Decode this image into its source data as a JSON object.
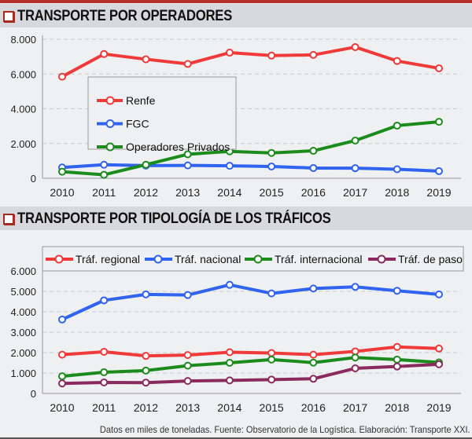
{
  "chart_data": [
    {
      "type": "line",
      "title": "TRANSPORTE POR OPERADORES",
      "x": [
        "2010",
        "2011",
        "2012",
        "2013",
        "2014",
        "2015",
        "2016",
        "2017",
        "2018",
        "2019"
      ],
      "yticks": [
        "0",
        "2.000",
        "4.000",
        "6.000",
        "8.000"
      ],
      "ylim": [
        0,
        8000
      ],
      "grid": true,
      "legend": "upper-left inside",
      "series": [
        {
          "name": "Renfe",
          "color": "#f03a3a",
          "values": [
            5850,
            7150,
            6850,
            6580,
            7230,
            7060,
            7100,
            7550,
            6750,
            6330
          ]
        },
        {
          "name": "FGC",
          "color": "#2f63f0",
          "values": [
            620,
            780,
            730,
            740,
            720,
            680,
            590,
            580,
            520,
            410
          ]
        },
        {
          "name": "Operadores Privados",
          "color": "#1b8c1b",
          "values": [
            380,
            200,
            780,
            1380,
            1550,
            1460,
            1580,
            2170,
            3030,
            3250
          ]
        }
      ]
    },
    {
      "type": "line",
      "title": "TRANSPORTE POR TIPOLOGÍA DE LOS TRÁFICOS",
      "x": [
        "2010",
        "2011",
        "2012",
        "2013",
        "2014",
        "2015",
        "2016",
        "2017",
        "2018",
        "2019"
      ],
      "yticks": [
        "0",
        "1.000",
        "2.000",
        "3.000",
        "4.000",
        "5.000",
        "6.000"
      ],
      "ylim": [
        0,
        6000
      ],
      "grid": true,
      "legend": "top",
      "series": [
        {
          "name": "Tráf. regional",
          "color": "#f03a3a",
          "values": [
            1900,
            2040,
            1840,
            1880,
            2020,
            1980,
            1900,
            2060,
            2280,
            2200
          ]
        },
        {
          "name": "Tráf. nacional",
          "color": "#2f63f0",
          "values": [
            3620,
            4560,
            4850,
            4820,
            5320,
            4900,
            5140,
            5220,
            5030,
            4850
          ]
        },
        {
          "name": "Tráf. internacional",
          "color": "#1b8c1b",
          "values": [
            840,
            1040,
            1120,
            1360,
            1500,
            1660,
            1510,
            1760,
            1660,
            1520
          ]
        },
        {
          "name": "Tráf. de paso",
          "color": "#8b2a5e",
          "values": [
            490,
            540,
            530,
            610,
            640,
            680,
            720,
            1230,
            1320,
            1430
          ]
        }
      ]
    }
  ],
  "footer": "Datos en miles de toneladas. Fuente: Observatorio de la Logística. Elaboración: Transporte XXI."
}
